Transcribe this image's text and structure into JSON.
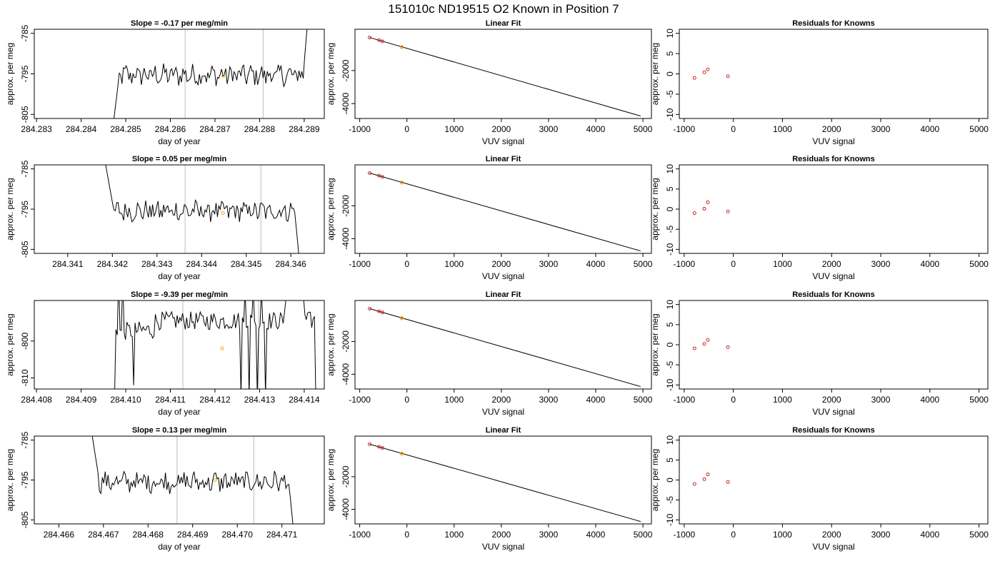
{
  "figure_title": "151010c     ND19515   O2 Known in Position  7",
  "colors": {
    "trace": "#000000",
    "marker_orange": "#FFA500",
    "marker_red": "#D22222",
    "vline": "#BEBEBE",
    "axis": "#000000"
  },
  "chart_data": [
    {
      "type": "line",
      "panel": "timeseries",
      "row": 1,
      "title": "Slope =  -0.17  per meg/min",
      "xlabel": "day of year",
      "ylabel": "approx. per meg",
      "xlim": [
        284.28295,
        284.28945
      ],
      "ylim": [
        -806,
        -784
      ],
      "xticks": [
        284.283,
        284.284,
        284.285,
        284.286,
        284.287,
        284.288,
        284.289
      ],
      "xtick_labels": [
        "284.283",
        "284.284",
        "284.285",
        "284.286",
        "284.287",
        "284.288",
        "284.289"
      ],
      "yticks": [
        -805,
        -795,
        -785
      ],
      "ytick_labels": [
        "-805",
        "-795",
        "-785"
      ],
      "vlines": [
        284.28633,
        284.28808
      ],
      "highlight": {
        "x": 284.28719,
        "y": -795.5
      },
      "series": [
        {
          "x_start": 284.28473,
          "x_end": 284.28907,
          "n": 140,
          "baseline": -795.3,
          "entry": {
            "from": -806.5,
            "steps": 4
          },
          "exit": {
            "to": -783,
            "steps": 3
          }
        }
      ]
    },
    {
      "type": "line",
      "panel": "fit",
      "row": 1,
      "title": "Linear Fit",
      "xlabel": "VUV signal",
      "ylabel": "approx. per meg",
      "xlim": [
        -1100,
        5180
      ],
      "ylim": [
        -4900,
        500
      ],
      "xticks": [
        -1000,
        0,
        1000,
        2000,
        3000,
        4000,
        5000
      ],
      "xtick_labels": [
        "-1000",
        "0",
        "1000",
        "2000",
        "3000",
        "4000",
        "5000"
      ],
      "yticks": [
        -4000,
        -2000
      ],
      "ytick_labels": [
        "-4000",
        "-2000"
      ],
      "line": {
        "x1": -790,
        "y1": 0,
        "x2": 4950,
        "y2": -4750
      },
      "knowns": {
        "x": [
          -790,
          -590,
          -520,
          -110
        ],
        "y": [
          0,
          -160,
          -230,
          -580
        ]
      },
      "sample": {
        "x": -110,
        "y": -580
      }
    },
    {
      "type": "scatter",
      "panel": "residuals",
      "row": 1,
      "title": "Residuals for Knowns",
      "xlabel": "VUV signal",
      "ylabel": "approx. per meg",
      "xlim": [
        -1100,
        5180
      ],
      "ylim": [
        -11,
        11
      ],
      "xticks": [
        -1000,
        0,
        1000,
        2000,
        3000,
        4000,
        5000
      ],
      "xtick_labels": [
        "-1000",
        "0",
        "1000",
        "2000",
        "3000",
        "4000",
        "5000"
      ],
      "yticks": [
        -10,
        -5,
        0,
        5,
        10
      ],
      "ytick_labels": [
        "-10",
        "-5",
        "0",
        "5",
        "10"
      ],
      "points": {
        "x": [
          -790,
          -590,
          -520,
          -110
        ],
        "y": [
          -1.0,
          0.4,
          1.1,
          -0.6
        ]
      }
    },
    {
      "type": "line",
      "panel": "timeseries",
      "row": 2,
      "title": "Slope =  0.05  per meg/min",
      "xlabel": "day of year",
      "ylabel": "approx. per meg",
      "xlim": [
        284.34025,
        284.34675
      ],
      "ylim": [
        -806,
        -784
      ],
      "xticks": [
        284.341,
        284.342,
        284.343,
        284.344,
        284.345,
        284.346
      ],
      "xtick_labels": [
        "284.341",
        "284.342",
        "284.343",
        "284.344",
        "284.345",
        "284.346"
      ],
      "yticks": [
        -805,
        -795,
        -785
      ],
      "ytick_labels": [
        "-805",
        "-795",
        "-785"
      ],
      "vlines": [
        284.34363,
        284.34533
      ],
      "highlight": {
        "x": 284.34448,
        "y": -796.0
      },
      "series": [
        {
          "x_start": 284.34185,
          "x_end": 284.34618,
          "n": 140,
          "baseline": -795.5,
          "entry": {
            "from": -784,
            "steps": 6
          },
          "exit": {
            "to": -806.5,
            "steps": 3
          }
        }
      ]
    },
    {
      "type": "line",
      "panel": "fit",
      "row": 2,
      "title": "Linear Fit",
      "xlabel": "VUV signal",
      "ylabel": "approx. per meg",
      "xlim": [
        -1100,
        5180
      ],
      "ylim": [
        -4900,
        500
      ],
      "xticks": [
        -1000,
        0,
        1000,
        2000,
        3000,
        4000,
        5000
      ],
      "xtick_labels": [
        "-1000",
        "0",
        "1000",
        "2000",
        "3000",
        "4000",
        "5000"
      ],
      "yticks": [
        -4000,
        -2000
      ],
      "ytick_labels": [
        "-4000",
        "-2000"
      ],
      "line": {
        "x1": -790,
        "y1": 0,
        "x2": 4950,
        "y2": -4750
      },
      "knowns": {
        "x": [
          -790,
          -590,
          -520,
          -110
        ],
        "y": [
          0,
          -160,
          -230,
          -580
        ]
      },
      "sample": {
        "x": -110,
        "y": -580
      }
    },
    {
      "type": "scatter",
      "panel": "residuals",
      "row": 2,
      "title": "Residuals for Knowns",
      "xlabel": "VUV signal",
      "ylabel": "approx. per meg",
      "xlim": [
        -1100,
        5180
      ],
      "ylim": [
        -11,
        11
      ],
      "xticks": [
        -1000,
        0,
        1000,
        2000,
        3000,
        4000,
        5000
      ],
      "xtick_labels": [
        "-1000",
        "0",
        "1000",
        "2000",
        "3000",
        "4000",
        "5000"
      ],
      "yticks": [
        -10,
        -5,
        0,
        5,
        10
      ],
      "ytick_labels": [
        "-10",
        "-5",
        "0",
        "5",
        "10"
      ],
      "points": {
        "x": [
          -790,
          -590,
          -520,
          -110
        ],
        "y": [
          -1.0,
          0.1,
          1.7,
          -0.6
        ]
      }
    },
    {
      "type": "line",
      "panel": "timeseries",
      "row": 3,
      "title": "Slope =  -9.39  per meg/min",
      "xlabel": "day of year",
      "ylabel": "approx. per meg",
      "xlim": [
        284.40795,
        284.41445
      ],
      "ylim": [
        -813,
        -789
      ],
      "xticks": [
        284.408,
        284.409,
        284.41,
        284.411,
        284.412,
        284.413,
        284.414
      ],
      "xtick_labels": [
        "284.408",
        "284.409",
        "284.410",
        "284.411",
        "284.412",
        "284.413",
        "284.414"
      ],
      "yticks": [
        -810,
        -800
      ],
      "ytick_labels": [
        "-810",
        "-800"
      ],
      "vlines": [
        284.41128,
        284.41298
      ],
      "highlight": {
        "x": 284.41216,
        "y": -802.0
      },
      "series": [
        {
          "x_start": 284.40975,
          "x_end": 284.41432,
          "n": 150,
          "baseline": -794.5,
          "noisy": true
        }
      ]
    },
    {
      "type": "line",
      "panel": "fit",
      "row": 3,
      "title": "Linear Fit",
      "xlabel": "VUV signal",
      "ylabel": "approx. per meg",
      "xlim": [
        -1100,
        5180
      ],
      "ylim": [
        -4900,
        500
      ],
      "xticks": [
        -1000,
        0,
        1000,
        2000,
        3000,
        4000,
        5000
      ],
      "xtick_labels": [
        "-1000",
        "0",
        "1000",
        "2000",
        "3000",
        "4000",
        "5000"
      ],
      "yticks": [
        -4000,
        -2000
      ],
      "ytick_labels": [
        "-4000",
        "-2000"
      ],
      "line": {
        "x1": -790,
        "y1": 0,
        "x2": 4950,
        "y2": -4750
      },
      "knowns": {
        "x": [
          -790,
          -590,
          -520,
          -110
        ],
        "y": [
          0,
          -160,
          -230,
          -580
        ]
      },
      "sample": {
        "x": -110,
        "y": -580
      }
    },
    {
      "type": "scatter",
      "panel": "residuals",
      "row": 3,
      "title": "Residuals for Knowns",
      "xlabel": "VUV signal",
      "ylabel": "approx. per meg",
      "xlim": [
        -1100,
        5180
      ],
      "ylim": [
        -11,
        11
      ],
      "xticks": [
        -1000,
        0,
        1000,
        2000,
        3000,
        4000,
        5000
      ],
      "xtick_labels": [
        "-1000",
        "0",
        "1000",
        "2000",
        "3000",
        "4000",
        "5000"
      ],
      "yticks": [
        -10,
        -5,
        0,
        5,
        10
      ],
      "ytick_labels": [
        "-10",
        "-5",
        "0",
        "5",
        "10"
      ],
      "points": {
        "x": [
          -790,
          -590,
          -520,
          -110
        ],
        "y": [
          -0.9,
          0.2,
          1.2,
          -0.6
        ]
      }
    },
    {
      "type": "line",
      "panel": "timeseries",
      "row": 4,
      "title": "Slope =  0.13  per meg/min",
      "xlabel": "day of year",
      "ylabel": "approx. per meg",
      "xlim": [
        284.46545,
        284.47195
      ],
      "ylim": [
        -806,
        -784
      ],
      "xticks": [
        284.466,
        284.467,
        284.468,
        284.469,
        284.47,
        284.471
      ],
      "xtick_labels": [
        "284.466",
        "284.467",
        "284.468",
        "284.469",
        "284.470",
        "284.471"
      ],
      "yticks": [
        -805,
        -795,
        -785
      ],
      "ytick_labels": [
        "-805",
        "-795",
        "-785"
      ],
      "vlines": [
        284.46865,
        284.47037
      ],
      "highlight": {
        "x": 284.4695,
        "y": -795.0
      },
      "series": [
        {
          "x_start": 284.46675,
          "x_end": 284.47125,
          "n": 140,
          "baseline": -795.5,
          "entry": {
            "from": -784,
            "steps": 5
          },
          "exit": {
            "to": -806.5,
            "steps": 3
          }
        }
      ]
    },
    {
      "type": "line",
      "panel": "fit",
      "row": 4,
      "title": "Linear Fit",
      "xlabel": "VUV signal",
      "ylabel": "approx. per meg",
      "xlim": [
        -1100,
        5180
      ],
      "ylim": [
        -4900,
        500
      ],
      "xticks": [
        -1000,
        0,
        1000,
        2000,
        3000,
        4000,
        5000
      ],
      "xtick_labels": [
        "-1000",
        "0",
        "1000",
        "2000",
        "3000",
        "4000",
        "5000"
      ],
      "yticks": [
        -4000,
        -2000
      ],
      "ytick_labels": [
        "-4000",
        "-2000"
      ],
      "line": {
        "x1": -790,
        "y1": 0,
        "x2": 4950,
        "y2": -4750
      },
      "knowns": {
        "x": [
          -790,
          -590,
          -520,
          -110
        ],
        "y": [
          0,
          -160,
          -230,
          -580
        ]
      },
      "sample": {
        "x": -110,
        "y": -580
      }
    },
    {
      "type": "scatter",
      "panel": "residuals",
      "row": 4,
      "title": "Residuals for Knowns",
      "xlabel": "VUV signal",
      "ylabel": "approx. per meg",
      "xlim": [
        -1100,
        5180
      ],
      "ylim": [
        -11,
        11
      ],
      "xticks": [
        -1000,
        0,
        1000,
        2000,
        3000,
        4000,
        5000
      ],
      "xtick_labels": [
        "-1000",
        "0",
        "1000",
        "2000",
        "3000",
        "4000",
        "5000"
      ],
      "yticks": [
        -10,
        -5,
        0,
        5,
        10
      ],
      "ytick_labels": [
        "-10",
        "-5",
        "0",
        "5",
        "10"
      ],
      "points": {
        "x": [
          -790,
          -590,
          -520,
          -110
        ],
        "y": [
          -1.0,
          0.2,
          1.4,
          -0.5
        ]
      }
    }
  ]
}
